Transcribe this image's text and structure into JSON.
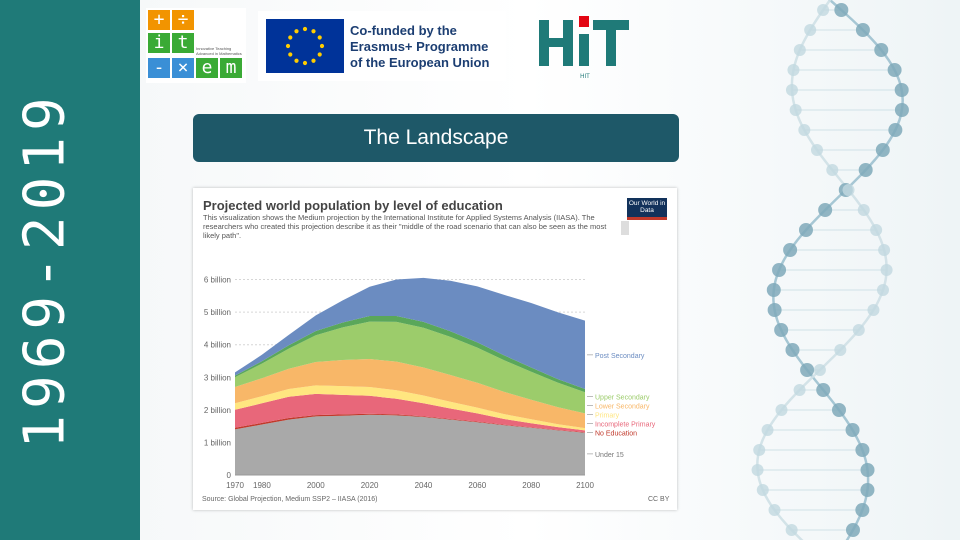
{
  "sidebar": {
    "year_range": "1969-2019"
  },
  "logos": {
    "itxem": {
      "glyphs": [
        "+",
        "÷",
        "i",
        "t",
        "-",
        "×",
        "e",
        "m"
      ],
      "caption": "Innovative Teaching Advanced in Mathematics",
      "colors": {
        "orange": "#f29400",
        "green": "#3aaa35",
        "blue": "#3a8fd6"
      }
    },
    "erasmus": {
      "text": "Co-funded by the Erasmus+ Programme of the European Union",
      "flag_color": "#003399",
      "star_color": "#ffcc00"
    },
    "hit": {
      "text": "HIT",
      "color": "#1f7a78",
      "dot_color": "#e30613"
    }
  },
  "slide": {
    "title": "The Landscape"
  },
  "chart_panel": {
    "title": "Projected world population by level of education",
    "subtitle": "This visualization shows the Medium projection by the International Institute for Applied Systems Analysis (IIASA). The researchers who created this projection describe it as their \"middle of the road scenario that can also be seen as the most likely path\".",
    "badge": "Our World in Data",
    "source": "Source: Global Projection, Medium SSP2 – IIASA (2016)",
    "license": "CC BY"
  },
  "chart_data": {
    "type": "area",
    "stacked": true,
    "title": "Projected world population by level of education",
    "x": [
      1970,
      1980,
      1990,
      2000,
      2010,
      2020,
      2030,
      2040,
      2050,
      2060,
      2070,
      2080,
      2090,
      2100
    ],
    "xticks": [
      1970,
      1980,
      2000,
      2020,
      2040,
      2060,
      2080,
      2100
    ],
    "ylim": [
      0,
      6.6
    ],
    "yticks": [
      {
        "value": 0,
        "label": "0"
      },
      {
        "value": 1,
        "label": "1 billion"
      },
      {
        "value": 2,
        "label": "2 billion"
      },
      {
        "value": 3,
        "label": "3 billion"
      },
      {
        "value": 4,
        "label": "4 billion"
      },
      {
        "value": 5,
        "label": "5 billion"
      },
      {
        "value": 6,
        "label": "6 billion"
      }
    ],
    "grid": true,
    "legend": "right",
    "series": [
      {
        "name": "Under 15",
        "color": "#a9a9a9",
        "values": [
          1.4,
          1.55,
          1.7,
          1.8,
          1.82,
          1.85,
          1.83,
          1.78,
          1.7,
          1.62,
          1.53,
          1.45,
          1.37,
          1.3
        ]
      },
      {
        "name": "No Education",
        "color": "#c0392b",
        "values": [
          0.05,
          0.05,
          0.05,
          0.04,
          0.04,
          0.03,
          0.03,
          0.02,
          0.02,
          0.02,
          0.01,
          0.01,
          0.01,
          0.01
        ]
      },
      {
        "name": "Incomplete Primary",
        "color": "#e8677a",
        "values": [
          0.55,
          0.6,
          0.65,
          0.65,
          0.6,
          0.55,
          0.48,
          0.4,
          0.32,
          0.25,
          0.18,
          0.13,
          0.09,
          0.06
        ]
      },
      {
        "name": "Primary",
        "color": "#ffe680",
        "values": [
          0.2,
          0.22,
          0.24,
          0.26,
          0.27,
          0.27,
          0.26,
          0.24,
          0.21,
          0.18,
          0.15,
          0.12,
          0.09,
          0.07
        ]
      },
      {
        "name": "Lower Secondary",
        "color": "#f8b768",
        "values": [
          0.5,
          0.55,
          0.62,
          0.72,
          0.8,
          0.86,
          0.88,
          0.86,
          0.82,
          0.76,
          0.68,
          0.6,
          0.52,
          0.45
        ]
      },
      {
        "name": "Upper Secondary",
        "color": "#9ccc6b",
        "values": [
          0.3,
          0.45,
          0.62,
          0.82,
          1.0,
          1.15,
          1.22,
          1.22,
          1.17,
          1.08,
          0.97,
          0.86,
          0.75,
          0.65
        ]
      },
      {
        "name": "",
        "color": "#5aa75a",
        "values": [
          0.05,
          0.07,
          0.1,
          0.13,
          0.15,
          0.17,
          0.18,
          0.18,
          0.17,
          0.16,
          0.15,
          0.13,
          0.11,
          0.1
        ]
      },
      {
        "name": "Post Secondary",
        "color": "#6b8cc1",
        "values": [
          0.1,
          0.2,
          0.32,
          0.48,
          0.68,
          0.9,
          1.12,
          1.35,
          1.55,
          1.72,
          1.86,
          1.98,
          2.05,
          2.1
        ]
      }
    ]
  }
}
